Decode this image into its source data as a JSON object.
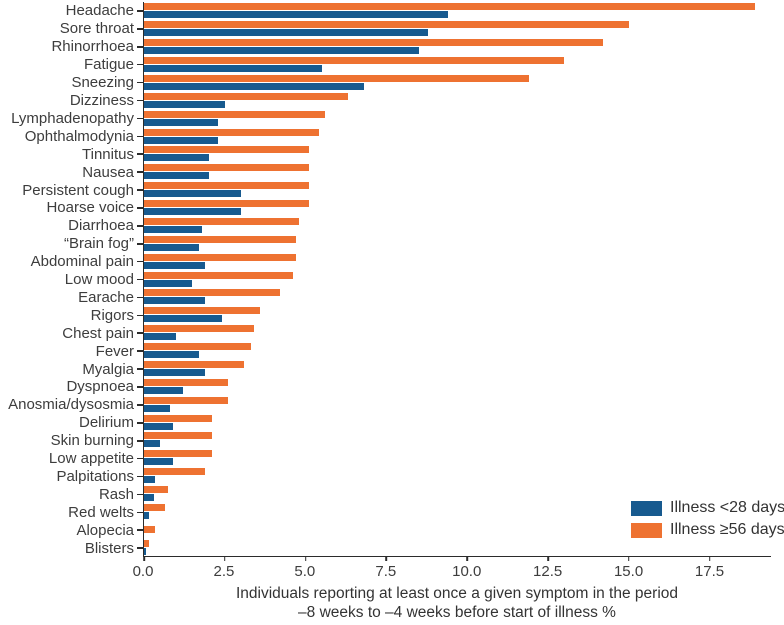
{
  "chart_data": {
    "type": "bar",
    "orientation": "horizontal_grouped",
    "title": "",
    "xlabel_line1": "Individuals reporting at least once a given symptom in the period",
    "xlabel_line2": "–8 weeks to –4 weeks before start of illness %",
    "ylabel": "",
    "grid": false,
    "legend_position": "lower right",
    "xlim": [
      0,
      19.4
    ],
    "xticks": [
      0.0,
      2.5,
      5.0,
      7.5,
      10.0,
      12.5,
      15.0,
      17.5
    ],
    "xtick_labels": [
      "0.0",
      "2.5",
      "5.0",
      "7.5",
      "10.0",
      "12.5",
      "15.0",
      "17.5"
    ],
    "categories": [
      "Headache",
      "Sore throat",
      "Rhinorrhoea",
      "Fatigue",
      "Sneezing",
      "Dizziness",
      "Lymphadenopathy",
      "Ophthalmodynia",
      "Tinnitus",
      "Nausea",
      "Persistent cough",
      "Hoarse voice",
      "Diarrhoea",
      "“Brain fog”",
      "Abdominal pain",
      "Low mood",
      "Earache",
      "Rigors",
      "Chest pain",
      "Fever",
      "Myalgia",
      "Dyspnoea",
      "Anosmia/dysosmia",
      "Delirium",
      "Skin burning",
      "Low appetite",
      "Palpitations",
      "Rash",
      "Red welts",
      "Alopecia",
      "Blisters"
    ],
    "series": [
      {
        "name": "Illness <28 days",
        "color": "#175a8f",
        "values": [
          9.4,
          8.8,
          8.5,
          5.5,
          6.8,
          2.5,
          2.3,
          2.3,
          2.0,
          2.0,
          3.0,
          3.0,
          1.8,
          1.7,
          1.9,
          1.5,
          1.9,
          2.4,
          1.0,
          1.7,
          1.9,
          1.2,
          0.8,
          0.9,
          0.5,
          0.9,
          0.35,
          0.3,
          0.15,
          0.0,
          0.05
        ]
      },
      {
        "name": "Illness ≥56 days",
        "color": "#ee7231",
        "values": [
          18.9,
          15.0,
          14.2,
          13.0,
          11.9,
          6.3,
          5.6,
          5.4,
          5.1,
          5.1,
          5.1,
          5.1,
          4.8,
          4.7,
          4.7,
          4.6,
          4.2,
          3.6,
          3.4,
          3.3,
          3.1,
          2.6,
          2.6,
          2.1,
          2.1,
          2.1,
          1.9,
          0.75,
          0.65,
          0.35,
          0.15
        ]
      }
    ],
    "axis_color": "#2b2b2b",
    "text_color": "#3d3d3d"
  }
}
